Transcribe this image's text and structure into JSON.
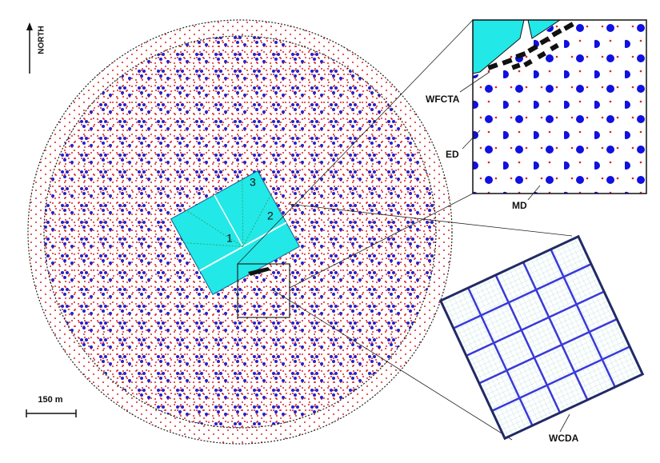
{
  "labels": {
    "north": "NORTH",
    "scale": "150 m",
    "wfcta": "WFCTA",
    "ed": "ED",
    "md": "MD",
    "wcda": "WCDA",
    "pond1": "1",
    "pond2": "2",
    "pond3": "3"
  }
}
